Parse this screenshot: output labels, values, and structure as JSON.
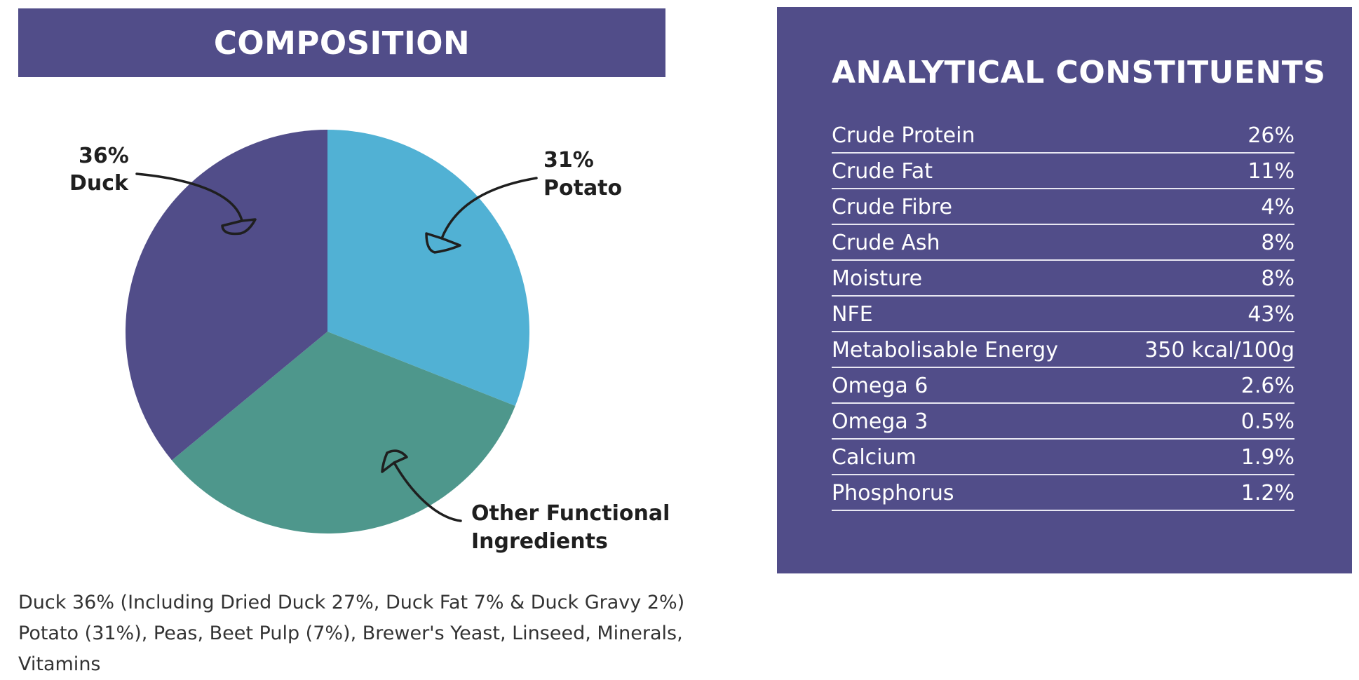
{
  "composition": {
    "title": "COMPOSITION",
    "ingredients_lines": [
      "Duck 36% (Including Dried Duck 27%, Duck Fat 7% & Duck Gravy 2%)",
      "Potato (31%), Peas, Beet Pulp (7%), Brewer's Yeast, Linseed, Minerals,",
      "Vitamins"
    ]
  },
  "chart_data": {
    "type": "pie",
    "slices": [
      {
        "label": "Potato",
        "value_label": "31%",
        "value": 31,
        "color": "#51b1d4"
      },
      {
        "label": "Other Functional Ingredients",
        "value_label": "",
        "value": 33,
        "color": "#4e978c"
      },
      {
        "label": "Duck",
        "value_label": "36%",
        "value": 36,
        "color": "#514d89"
      }
    ],
    "annotations": [
      {
        "slice": "Duck",
        "lines": [
          "36%",
          "Duck"
        ]
      },
      {
        "slice": "Potato",
        "lines": [
          "31%",
          "Potato"
        ]
      },
      {
        "slice": "Other Functional Ingredients",
        "lines": [
          "Other Functional",
          "Ingredients"
        ]
      }
    ],
    "start_position": "top",
    "direction": "clockwise"
  },
  "analytical": {
    "title": "ANALYTICAL CONSTITUENTS",
    "rows": [
      {
        "name": "Crude Protein",
        "value": "26%"
      },
      {
        "name": "Crude Fat",
        "value": "11%"
      },
      {
        "name": "Crude Fibre",
        "value": "4%"
      },
      {
        "name": "Crude Ash",
        "value": "8%"
      },
      {
        "name": "Moisture",
        "value": "8%"
      },
      {
        "name": "NFE",
        "value": "43%"
      },
      {
        "name": "Metabolisable Energy",
        "value": "350 kcal/100g"
      },
      {
        "name": "Omega 6",
        "value": "2.6%"
      },
      {
        "name": "Omega 3",
        "value": "0.5%"
      },
      {
        "name": "Calcium",
        "value": "1.9%"
      },
      {
        "name": "Phosphorus",
        "value": "1.2%"
      }
    ]
  },
  "colors": {
    "panel_purple": "#514d89",
    "potato_blue": "#51b1d4",
    "other_green": "#4e978c",
    "duck_purple": "#514d89"
  }
}
